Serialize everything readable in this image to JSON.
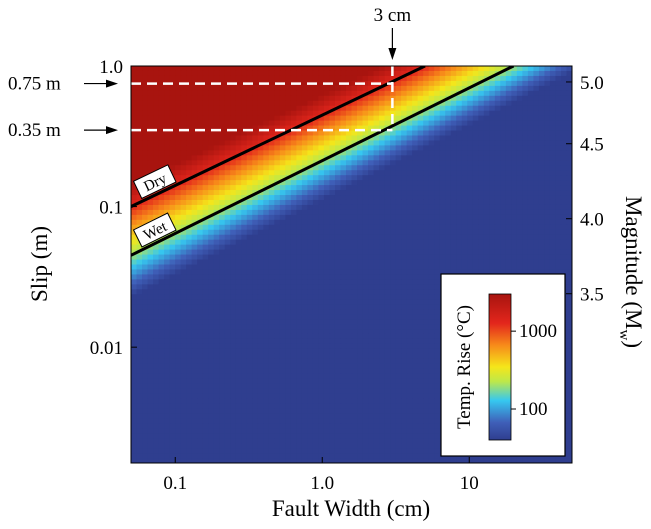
{
  "chart_data": {
    "type": "heatmap",
    "title": "",
    "xlabel": "Fault Width (cm)",
    "ylabel": "Slip (m)",
    "y2label_main": "Magnitude (M",
    "y2label_sub": "w",
    "y2label_close": ")",
    "x_scale": "log",
    "y_scale": "log",
    "xlim": [
      0.05,
      50
    ],
    "ylim": [
      0.0015,
      1.0
    ],
    "x_ticks": [
      {
        "value": 0.1,
        "label": "0.1"
      },
      {
        "value": 1.0,
        "label": "1.0"
      },
      {
        "value": 10,
        "label": "10"
      }
    ],
    "y_ticks": [
      {
        "value": 0.01,
        "label": "0.01"
      },
      {
        "value": 0.1,
        "label": "0.1"
      },
      {
        "value": 1.0,
        "label": "1.0"
      }
    ],
    "magnitude_ticks": [
      {
        "value": 5.0,
        "slip": 0.77,
        "label": "5.0"
      },
      {
        "value": 4.5,
        "slip": 0.28,
        "label": "4.5"
      },
      {
        "value": 4.0,
        "slip": 0.082,
        "label": "4.0"
      },
      {
        "value": 3.5,
        "slip": 0.024,
        "label": "3.5"
      }
    ],
    "temperature_model": {
      "description_note": "",
      "dry_threshold": {
        "width_at_slip_1": 5.0,
        "slip_at_width_0_05": 0.1
      },
      "wet_threshold": {
        "width_at_slip_1": 20.0,
        "slip_at_width_0_05": 0.045
      },
      "temp_on_dry_line_C": 1300,
      "temp_on_wet_line_C": 200
    },
    "contours": [
      {
        "label": "Dry",
        "points": [
          [
            0.05,
            0.1
          ],
          [
            5.0,
            1.0
          ]
        ]
      },
      {
        "label": "Wet",
        "points": [
          [
            0.05,
            0.045
          ],
          [
            20.0,
            1.0
          ]
        ]
      }
    ],
    "reference_lines": [
      {
        "label": "0.75 m",
        "type": "horizontal",
        "y": 0.75,
        "x_end": 3.0
      },
      {
        "label": "0.35 m",
        "type": "horizontal",
        "y": 0.35,
        "x_end": 3.0
      },
      {
        "label": "3 cm",
        "type": "vertical",
        "x": 3.0,
        "y_start": 0.35,
        "y_end": 1.0
      }
    ],
    "colorbar": {
      "title": "Temp. Rise (°C)",
      "scale": "log",
      "range": [
        40,
        3000
      ],
      "ticks": [
        {
          "value": 1000,
          "label": "1000"
        },
        {
          "value": 100,
          "label": "100"
        }
      ],
      "colors": {
        "low": "#2f3e8f",
        "cyan": "#36c8f0",
        "yellow": "#f5e61a",
        "orange": "#f78a1a",
        "red": "#e3261c",
        "high": "#a8140f"
      }
    }
  }
}
